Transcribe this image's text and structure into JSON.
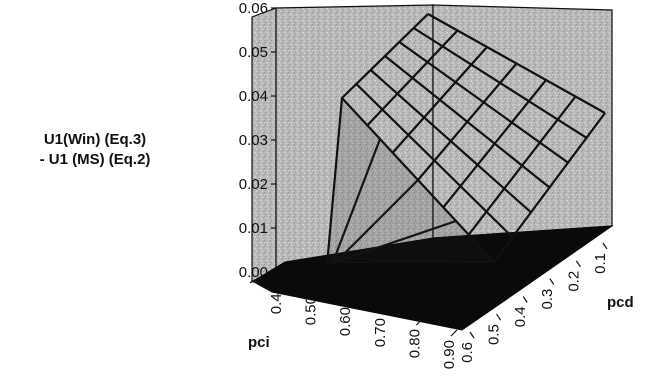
{
  "chart_data": {
    "type": "surface",
    "title": "",
    "zlabel_lines": [
      "U1(Win) (Eq.3)",
      "- U1 (MS) (Eq.2)"
    ],
    "xlabel": "pci",
    "ylabel": "pcd",
    "x_ticks": [
      "0.40",
      "0.50",
      "0.60",
      "0.70",
      "0.80",
      "0.90"
    ],
    "y_ticks": [
      "0.6",
      "0.5",
      "0.4",
      "0.3",
      "0.2",
      "0.1"
    ],
    "z_ticks": [
      "0.00",
      "0.01",
      "0.02",
      "0.03",
      "0.04",
      "0.05",
      "0.06"
    ],
    "zlim": [
      0,
      0.06
    ],
    "grid": true,
    "colors": {
      "wall": "#b8b8b8",
      "floor": "#0a0a0a",
      "mesh": "#111111",
      "text": "#111111"
    }
  }
}
